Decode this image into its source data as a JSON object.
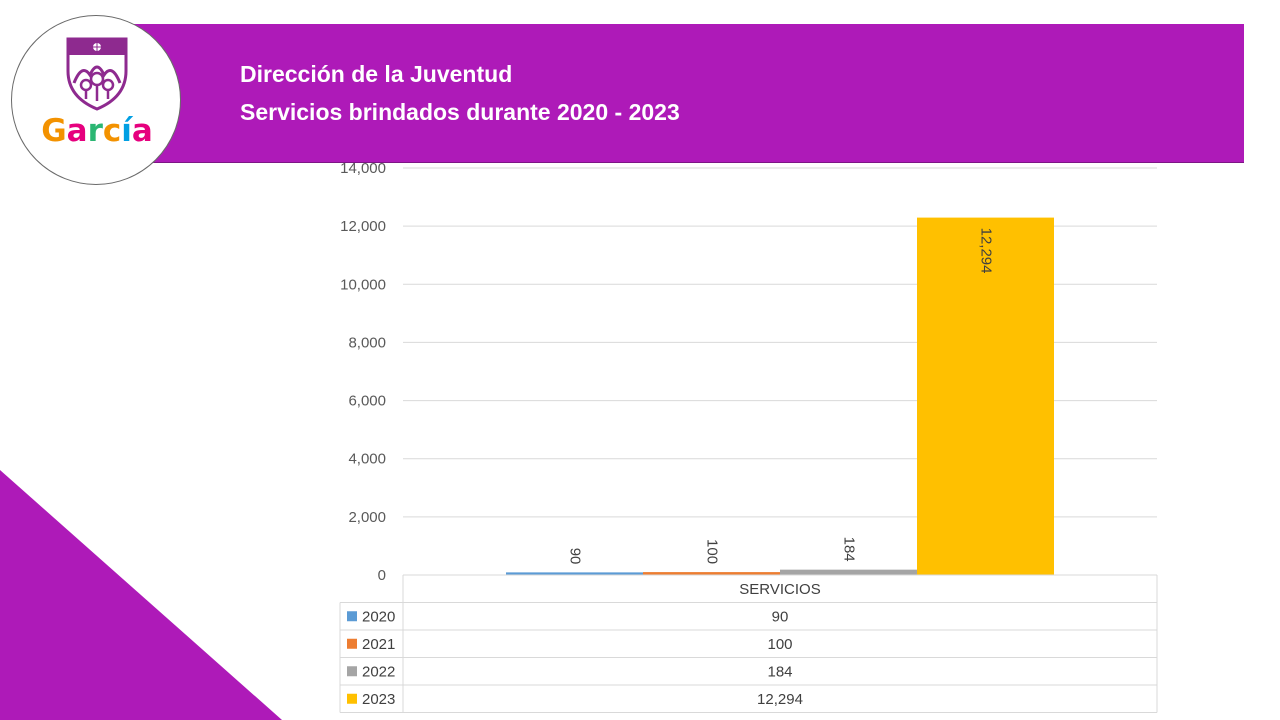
{
  "header": {
    "title_line1": "Dirección de la Juventud",
    "title_line2": "Servicios brindados durante 2020 - 2023"
  },
  "logo": {
    "icon": "garcia-crest-icon",
    "letters": [
      "G",
      "a",
      "r",
      "c",
      "í",
      "a"
    ],
    "letter_colors": [
      "#F39200",
      "#E6007E",
      "#2BB673",
      "#F39200",
      "#009FE3",
      "#E6007E"
    ]
  },
  "colors": {
    "banner": "#AE1AB8",
    "accent_triangle": "#AE1AB8"
  },
  "chart_data": {
    "type": "bar",
    "categories": [
      "SERVICIOS"
    ],
    "series": [
      {
        "name": "2020",
        "values": [
          90
        ],
        "color": "#5B9BD5"
      },
      {
        "name": "2021",
        "values": [
          100
        ],
        "color": "#ED7D31"
      },
      {
        "name": "2022",
        "values": [
          184
        ],
        "color": "#A5A5A5"
      },
      {
        "name": "2023",
        "values": [
          12294
        ],
        "color": "#FFC000"
      }
    ],
    "value_labels": [
      "90",
      "100",
      "184",
      "12,294"
    ],
    "ylim": [
      0,
      14000
    ],
    "yticks": [
      0,
      2000,
      4000,
      6000,
      8000,
      10000,
      12000,
      14000
    ],
    "ytick_labels": [
      "0",
      "2,000",
      "4,000",
      "6,000",
      "8,000",
      "10,000",
      "12,000",
      "14,000"
    ],
    "grid": true,
    "data_table": true,
    "title": "",
    "xlabel": "",
    "ylabel": ""
  }
}
